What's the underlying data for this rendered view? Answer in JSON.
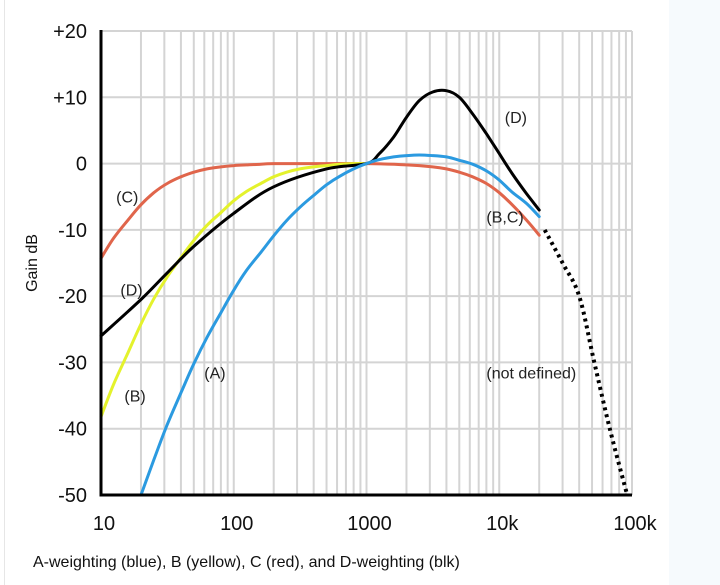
{
  "chart_data": {
    "type": "line",
    "title": "",
    "caption": "A-weighting (blue), B (yellow), C (red), and D-weighting (blk)",
    "xlabel": "",
    "ylabel": "Gain dB",
    "xscale": "log",
    "xlim": [
      10,
      100000
    ],
    "ylim": [
      -50,
      20
    ],
    "grid": true,
    "x_ticks": [
      {
        "value": 10,
        "label": "10"
      },
      {
        "value": 100,
        "label": "100"
      },
      {
        "value": 1000,
        "label": "1000"
      },
      {
        "value": 10000,
        "label": "10k"
      },
      {
        "value": 100000,
        "label": "100k"
      }
    ],
    "y_ticks": [
      {
        "value": 20,
        "label": "+20"
      },
      {
        "value": 10,
        "label": "+10"
      },
      {
        "value": 0,
        "label": "0"
      },
      {
        "value": -10,
        "label": "-10"
      },
      {
        "value": -20,
        "label": "-20"
      },
      {
        "value": -30,
        "label": "-30"
      },
      {
        "value": -40,
        "label": "-40"
      },
      {
        "value": -50,
        "label": "-50"
      }
    ],
    "series": [
      {
        "name": "C",
        "color": "#e0654b",
        "style": "solid",
        "x": [
          10,
          12.5,
          16,
          20,
          25,
          31.5,
          40,
          50,
          63,
          80,
          100,
          125,
          160,
          200,
          500,
          1000,
          2000,
          3150,
          4000,
          5000,
          6300,
          8000,
          10000,
          12500,
          16000,
          20000
        ],
        "y": [
          -14.3,
          -11.2,
          -8.5,
          -6.2,
          -4.4,
          -3.0,
          -2.0,
          -1.3,
          -0.8,
          -0.5,
          -0.3,
          -0.2,
          -0.1,
          0,
          0,
          0,
          -0.2,
          -0.5,
          -0.8,
          -1.3,
          -2.0,
          -3.0,
          -4.4,
          -6.2,
          -8.5,
          -10.8
        ]
      },
      {
        "name": "B",
        "color": "#e4f22c",
        "style": "solid",
        "x": [
          10,
          12.5,
          16,
          20,
          25,
          31.5,
          40,
          50,
          63,
          80,
          100,
          125,
          160,
          200,
          250,
          315,
          400,
          500,
          630,
          800,
          1000
        ],
        "y": [
          -38.2,
          -33.2,
          -28.5,
          -24.2,
          -20.4,
          -17.1,
          -14.2,
          -11.6,
          -9.3,
          -7.4,
          -5.6,
          -4.2,
          -3.0,
          -2.0,
          -1.3,
          -0.8,
          -0.5,
          -0.3,
          -0.1,
          0,
          0
        ]
      },
      {
        "name": "D",
        "color": "#000000",
        "style": "solid",
        "x": [
          10,
          20,
          31.5,
          50,
          100,
          200,
          500,
          1000,
          1250,
          1600,
          2000,
          2500,
          3150,
          4000,
          5000,
          6300,
          8000,
          10000,
          12500,
          16000,
          20000
        ],
        "y": [
          -26,
          -20.5,
          -16.5,
          -12.5,
          -7.5,
          -3.5,
          -0.8,
          0,
          1.5,
          4,
          7,
          9.5,
          10.8,
          11,
          10,
          7.5,
          4.5,
          1.5,
          -1.5,
          -4.5,
          -7
        ]
      },
      {
        "name": "A",
        "color": "#2b9ae0",
        "style": "solid",
        "x": [
          20,
          25,
          31.5,
          40,
          50,
          63,
          80,
          100,
          125,
          160,
          200,
          250,
          315,
          400,
          500,
          630,
          800,
          1000,
          1250,
          1600,
          2000,
          2500,
          3150,
          4000,
          5000,
          6300,
          8000,
          10000,
          12500,
          16000,
          20000
        ],
        "y": [
          -50,
          -44.7,
          -39.4,
          -34.6,
          -30.2,
          -26.2,
          -22.5,
          -19.1,
          -16.1,
          -13.4,
          -10.9,
          -8.6,
          -6.6,
          -4.8,
          -3.2,
          -1.9,
          -0.8,
          0,
          0.6,
          1.0,
          1.2,
          1.3,
          1.2,
          1.0,
          0.5,
          -0.1,
          -1.1,
          -2.5,
          -4.3,
          -6.0,
          -8.0
        ]
      },
      {
        "name": "not defined",
        "color": "#000000",
        "style": "dotted",
        "x": [
          22000,
          30000,
          40000,
          52000,
          68000,
          92000
        ],
        "y": [
          -10,
          -15,
          -20,
          -30,
          -40,
          -50
        ]
      }
    ],
    "annotations": [
      {
        "text": "(C)",
        "x": 13,
        "y": -5
      },
      {
        "text": "(D)",
        "x": 14,
        "y": -19
      },
      {
        "text": "(B)",
        "x": 15,
        "y": -35
      },
      {
        "text": "(A)",
        "x": 60,
        "y": -31.5
      },
      {
        "text": "(D)",
        "x": 11000,
        "y": 7
      },
      {
        "text": "(B,C)",
        "x": 8000,
        "y": -8
      },
      {
        "text": "(not defined)",
        "x": 8000,
        "y": -31.5
      }
    ]
  }
}
